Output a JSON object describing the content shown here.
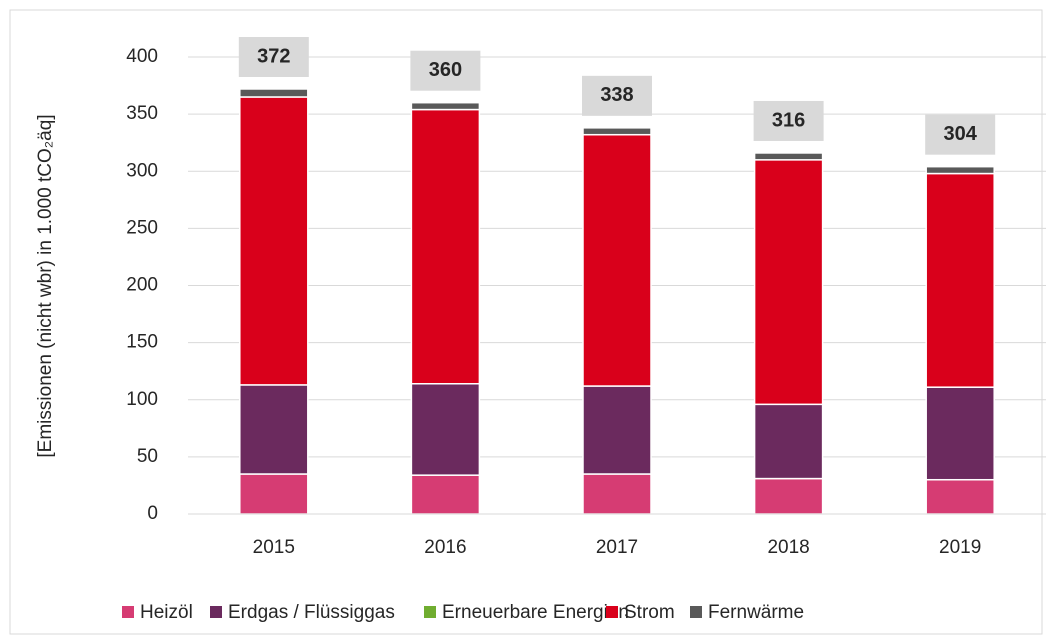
{
  "chart_data": {
    "type": "stacked_bar",
    "y_label": "[Emissionen (nicht wbr) in 1.000 tCO₂äq]",
    "categories": [
      "2015",
      "2016",
      "2017",
      "2018",
      "2019"
    ],
    "series": [
      {
        "name": "Heizöl",
        "color": "#d63c73",
        "values": [
          35,
          34,
          35,
          31,
          30
        ]
      },
      {
        "name": "Erdgas / Flüssiggas",
        "color": "#6b2a5e",
        "values": [
          78,
          80,
          77,
          65,
          81
        ]
      },
      {
        "name": "Erneuerbare Energien",
        "color": "#70ad30",
        "values": [
          0,
          0,
          0,
          0,
          0
        ]
      },
      {
        "name": "Strom",
        "color": "#d9001b",
        "values": [
          252,
          240,
          220,
          214,
          187
        ]
      },
      {
        "name": "Fernwärme",
        "color": "#595959",
        "values": [
          7,
          6,
          6,
          6,
          6
        ]
      }
    ],
    "totals": [
      372,
      360,
      338,
      316,
      304
    ],
    "ylim": [
      0,
      400
    ],
    "yticks": [
      0,
      50,
      100,
      150,
      200,
      250,
      300,
      350,
      400
    ],
    "grid": true,
    "legend": "bottom"
  }
}
